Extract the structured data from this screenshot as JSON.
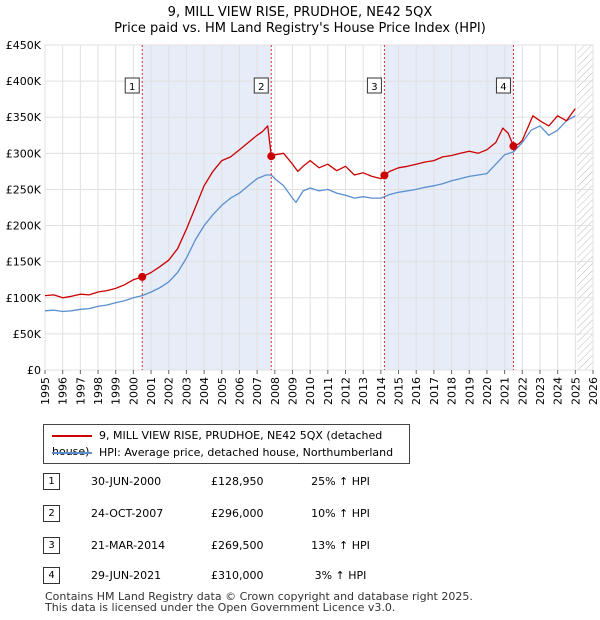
{
  "chart_data": {
    "type": "line",
    "title": "9, MILL VIEW RISE, PRUDHOE, NE42 5QX",
    "subtitle": "Price paid vs. HM Land Registry's House Price Index (HPI)",
    "xlim": [
      1995,
      2026
    ],
    "ylim": [
      0,
      450000
    ],
    "y_ticks": [
      0,
      50000,
      100000,
      150000,
      200000,
      250000,
      300000,
      350000,
      400000,
      450000
    ],
    "y_tick_labels": [
      "£0",
      "£50K",
      "£100K",
      "£150K",
      "£200K",
      "£250K",
      "£300K",
      "£350K",
      "£400K",
      "£450K"
    ],
    "x_ticks": [
      1995,
      1996,
      1997,
      1998,
      1999,
      2000,
      2001,
      2002,
      2003,
      2004,
      2005,
      2006,
      2007,
      2008,
      2009,
      2010,
      2011,
      2012,
      2013,
      2014,
      2015,
      2016,
      2017,
      2018,
      2019,
      2020,
      2021,
      2022,
      2023,
      2024,
      2025,
      2026
    ],
    "x_tick_labels": [
      "1995",
      "1996",
      "1997",
      "1998",
      "1999",
      "2000",
      "2001",
      "2002",
      "2003",
      "2004",
      "2005",
      "2006",
      "2007",
      "2008",
      "2009",
      "2010",
      "2011",
      "2012",
      "2013",
      "2014",
      "2015",
      "2016",
      "2017",
      "2018",
      "2019",
      "2020",
      "2021",
      "2022",
      "2023",
      "2024",
      "2025",
      "2026"
    ],
    "grid": true,
    "forecast_from": 2025.1,
    "shaded_periods": [
      [
        2000.5,
        2007.8
      ],
      [
        2014.2,
        2021.5
      ]
    ],
    "series": [
      {
        "name": "9, MILL VIEW RISE, PRUDHOE, NE42 5QX (detached house)",
        "color": "#cc0000",
        "x": [
          1995.0,
          1995.5,
          1996.0,
          1996.5,
          1997.0,
          1997.5,
          1998.0,
          1998.5,
          1999.0,
          1999.5,
          2000.0,
          2000.5,
          2001.0,
          2001.5,
          2002.0,
          2002.5,
          2003.0,
          2003.5,
          2004.0,
          2004.5,
          2005.0,
          2005.5,
          2006.0,
          2006.5,
          2007.0,
          2007.3,
          2007.6,
          2007.8,
          2008.0,
          2008.5,
          2009.0,
          2009.3,
          2009.6,
          2010.0,
          2010.5,
          2011.0,
          2011.5,
          2012.0,
          2012.5,
          2013.0,
          2013.5,
          2014.0,
          2014.2,
          2014.5,
          2015.0,
          2015.5,
          2016.0,
          2016.5,
          2017.0,
          2017.5,
          2018.0,
          2018.5,
          2019.0,
          2019.5,
          2020.0,
          2020.5,
          2020.9,
          2021.2,
          2021.5,
          2021.8,
          2022.0,
          2022.3,
          2022.6,
          2023.0,
          2023.5,
          2024.0,
          2024.5,
          2025.0
        ],
        "values": [
          103000,
          104000,
          100000,
          102000,
          105000,
          104000,
          108000,
          110000,
          113000,
          118000,
          125000,
          128950,
          135000,
          143000,
          152000,
          168000,
          195000,
          225000,
          255000,
          275000,
          290000,
          295000,
          305000,
          315000,
          325000,
          330000,
          338000,
          296000,
          298000,
          300000,
          285000,
          275000,
          282000,
          290000,
          280000,
          285000,
          276000,
          282000,
          270000,
          273000,
          268000,
          265000,
          269500,
          275000,
          280000,
          282000,
          285000,
          288000,
          290000,
          295000,
          297000,
          300000,
          303000,
          300000,
          305000,
          315000,
          335000,
          328000,
          310000,
          313000,
          318000,
          335000,
          352000,
          345000,
          338000,
          352000,
          345000,
          362000
        ]
      },
      {
        "name": "HPI: Average price, detached house, Northumberland",
        "color": "#5b8fd0",
        "x": [
          1995.0,
          1995.5,
          1996.0,
          1996.5,
          1997.0,
          1997.5,
          1998.0,
          1998.5,
          1999.0,
          1999.5,
          2000.0,
          2000.5,
          2001.0,
          2001.5,
          2002.0,
          2002.5,
          2003.0,
          2003.5,
          2004.0,
          2004.5,
          2005.0,
          2005.5,
          2006.0,
          2006.5,
          2007.0,
          2007.5,
          2007.8,
          2008.0,
          2008.5,
          2009.0,
          2009.2,
          2009.6,
          2010.0,
          2010.5,
          2011.0,
          2011.5,
          2012.0,
          2012.5,
          2013.0,
          2013.5,
          2014.0,
          2014.5,
          2015.0,
          2015.5,
          2016.0,
          2016.5,
          2017.0,
          2017.5,
          2018.0,
          2018.5,
          2019.0,
          2019.5,
          2020.0,
          2020.5,
          2021.0,
          2021.5,
          2022.0,
          2022.5,
          2023.0,
          2023.5,
          2024.0,
          2024.5,
          2025.0
        ],
        "values": [
          82000,
          83000,
          81000,
          82000,
          84000,
          85000,
          88000,
          90000,
          93000,
          96000,
          100000,
          103000,
          108000,
          114000,
          122000,
          135000,
          155000,
          180000,
          200000,
          215000,
          228000,
          238000,
          245000,
          255000,
          265000,
          270000,
          270000,
          265000,
          255000,
          238000,
          232000,
          248000,
          252000,
          248000,
          250000,
          245000,
          242000,
          238000,
          240000,
          238000,
          238000,
          243000,
          246000,
          248000,
          250000,
          253000,
          255000,
          258000,
          262000,
          265000,
          268000,
          270000,
          272000,
          285000,
          298000,
          302000,
          315000,
          332000,
          338000,
          325000,
          332000,
          345000,
          352000
        ]
      }
    ],
    "markers": [
      {
        "label": "1",
        "x": 2000.5,
        "y": 128950
      },
      {
        "label": "2",
        "x": 2007.8,
        "y": 296000
      },
      {
        "label": "3",
        "x": 2014.2,
        "y": 269500
      },
      {
        "label": "4",
        "x": 2021.5,
        "y": 310000
      }
    ]
  },
  "legend": {
    "items": [
      {
        "label": "9, MILL VIEW RISE, PRUDHOE, NE42 5QX (detached house)",
        "color": "#cc0000"
      },
      {
        "label": "HPI: Average price, detached house, Northumberland",
        "color": "#5b8fd0"
      }
    ]
  },
  "transactions": [
    {
      "num": "1",
      "date": "30-JUN-2000",
      "price": "£128,950",
      "hpi": "25% ↑ HPI"
    },
    {
      "num": "2",
      "date": "24-OCT-2007",
      "price": "£296,000",
      "hpi": "10% ↑ HPI"
    },
    {
      "num": "3",
      "date": "21-MAR-2014",
      "price": "£269,500",
      "hpi": "13% ↑ HPI"
    },
    {
      "num": "4",
      "date": "29-JUN-2021",
      "price": "£310,000",
      "hpi": "3% ↑ HPI"
    }
  ],
  "footer": {
    "line1": "Contains HM Land Registry data © Crown copyright and database right 2025.",
    "line2": "This data is licensed under the Open Government Licence v3.0."
  }
}
